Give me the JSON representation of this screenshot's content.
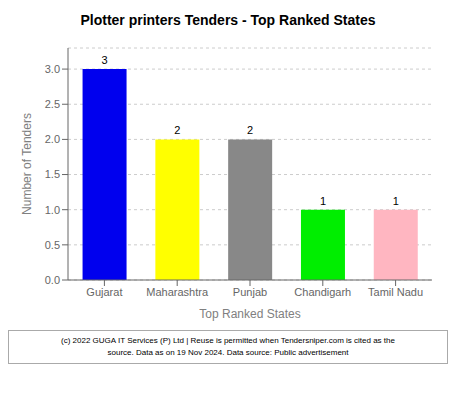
{
  "chart_data": {
    "type": "bar",
    "title": "Plotter printers Tenders - Top Ranked States",
    "categories": [
      "Gujarat",
      "Maharashtra",
      "Punjab",
      "Chandigarh",
      "Tamil Nadu"
    ],
    "values": [
      3,
      2,
      2,
      1,
      1
    ],
    "colors": [
      "#0000EE",
      "#FFFF00",
      "#888888",
      "#00EE00",
      "#FFB6C1"
    ],
    "xlabel": "Top Ranked States",
    "ylabel": "Number of Tenders",
    "ylim": [
      0,
      3.3
    ],
    "yticks": [
      {
        "value": 0,
        "label": "0.0"
      },
      0.5,
      {
        "value": 1,
        "label": "1.0"
      },
      1.5,
      {
        "value": 2,
        "label": "2.0"
      },
      2.5,
      {
        "value": 3,
        "label": "3.0"
      }
    ],
    "grid": true,
    "data_labels": true,
    "annotations": [
      "(c) 2022 GUGA IT Services (P) Ltd | Reuse is permitted when Tendersniper.com is cited as the",
      "source. Data as on 19 Nov 2024. Data source: Public advertisement"
    ]
  }
}
